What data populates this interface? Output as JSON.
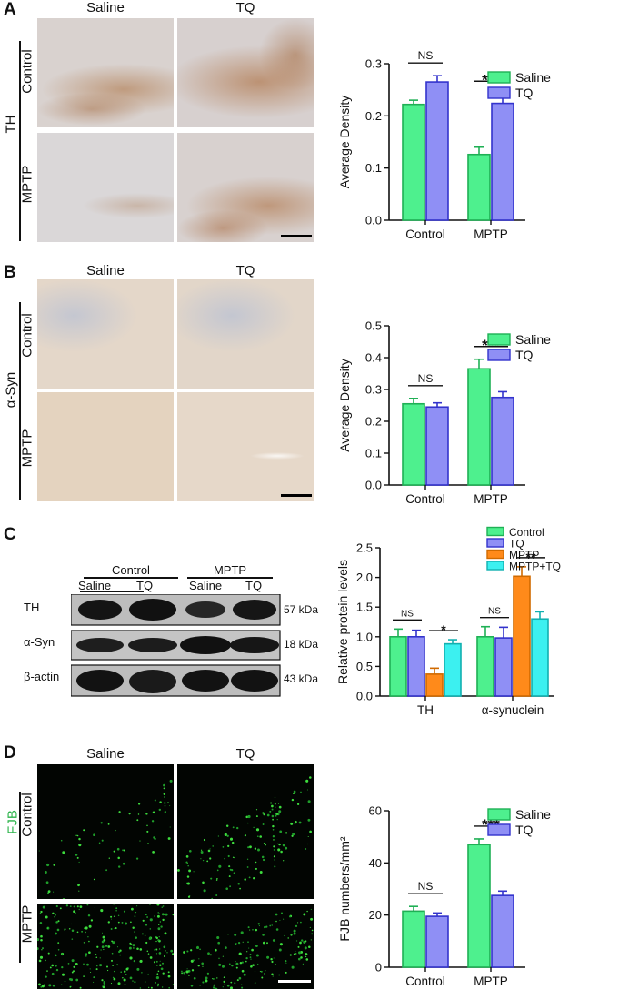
{
  "panels": {
    "A": {
      "label": "A",
      "col_titles": [
        "Saline",
        "TQ"
      ],
      "group_label": "TH",
      "row_titles": [
        "Control",
        "MPTP"
      ]
    },
    "B": {
      "label": "B",
      "col_titles": [
        "Saline",
        "TQ"
      ],
      "group_label": "α-Syn",
      "row_titles": [
        "Control",
        "MPTP"
      ]
    },
    "C": {
      "label": "C",
      "blot": {
        "group_titles": [
          "Control",
          "MPTP"
        ],
        "lane_titles": [
          "Saline",
          "TQ",
          "Saline",
          "TQ"
        ],
        "rows": [
          {
            "protein": "TH",
            "kda": "57 kDa"
          },
          {
            "protein": "α-Syn",
            "kda": "18 kDa"
          },
          {
            "protein": "β-actin",
            "kda": "43 kDa"
          }
        ]
      }
    },
    "D": {
      "label": "D",
      "col_titles": [
        "Saline",
        "TQ"
      ],
      "group_label": "FJB",
      "group_label_color": "#2bb34a",
      "row_titles": [
        "Control",
        "MPTP"
      ]
    }
  },
  "colors": {
    "saline": "#4ef08e",
    "tq": "#8f8ff5",
    "mptp": "#ff8a1a",
    "mptp_tq": "#3cf0f0",
    "axis": "#111111"
  },
  "chart_data": [
    {
      "id": "A",
      "type": "bar",
      "categories": [
        "Control",
        "MPTP"
      ],
      "series": [
        {
          "name": "Saline",
          "values": [
            0.222,
            0.126
          ],
          "errors": [
            0.008,
            0.014
          ]
        },
        {
          "name": "TQ",
          "values": [
            0.265,
            0.224
          ],
          "errors": [
            0.012,
            0.018
          ]
        }
      ],
      "ylabel": "Average Density",
      "ylim": [
        0,
        0.3
      ],
      "yticks": [
        "0.0",
        "0.1",
        "0.2",
        "0.3"
      ],
      "annotations": [
        {
          "group": 0,
          "text": "NS"
        },
        {
          "group": 1,
          "text": "***"
        }
      ],
      "legend": "top-right"
    },
    {
      "id": "B",
      "type": "bar",
      "categories": [
        "Control",
        "MPTP"
      ],
      "series": [
        {
          "name": "Saline",
          "values": [
            0.255,
            0.365
          ],
          "errors": [
            0.017,
            0.03
          ]
        },
        {
          "name": "TQ",
          "values": [
            0.245,
            0.275
          ],
          "errors": [
            0.013,
            0.018
          ]
        }
      ],
      "ylabel": "Average Density",
      "ylim": [
        0,
        0.5
      ],
      "yticks": [
        "0.0",
        "0.1",
        "0.2",
        "0.3",
        "0.4",
        "0.5"
      ],
      "annotations": [
        {
          "group": 0,
          "text": "NS"
        },
        {
          "group": 1,
          "text": "***"
        }
      ],
      "legend": "top-right"
    },
    {
      "id": "C",
      "type": "bar",
      "categories": [
        "TH",
        "α-synuclein"
      ],
      "series": [
        {
          "name": "Control",
          "values": [
            1.0,
            1.0
          ],
          "errors": [
            0.13,
            0.17
          ]
        },
        {
          "name": "TQ",
          "values": [
            1.0,
            0.98
          ],
          "errors": [
            0.11,
            0.18
          ]
        },
        {
          "name": "MPTP",
          "values": [
            0.37,
            2.02
          ],
          "errors": [
            0.1,
            0.16
          ]
        },
        {
          "name": "MPTP+TQ",
          "values": [
            0.88,
            1.3
          ],
          "errors": [
            0.07,
            0.12
          ]
        }
      ],
      "ylabel": "Relative protein levels",
      "ylim": [
        0,
        2.5
      ],
      "yticks": [
        "0.0",
        "0.5",
        "1.0",
        "1.5",
        "2.0",
        "2.5"
      ],
      "annotations": [
        {
          "group": 0,
          "pair": [
            0,
            1
          ],
          "text": "NS"
        },
        {
          "group": 0,
          "pair": [
            2,
            3
          ],
          "text": "*"
        },
        {
          "group": 1,
          "pair": [
            0,
            1
          ],
          "text": "NS"
        },
        {
          "group": 1,
          "pair": [
            2,
            3
          ],
          "text": "**"
        }
      ],
      "legend": "top-right"
    },
    {
      "id": "D",
      "type": "bar",
      "categories": [
        "Control",
        "MPTP"
      ],
      "series": [
        {
          "name": "Saline",
          "values": [
            21.5,
            47.0
          ],
          "errors": [
            1.8,
            2.2
          ]
        },
        {
          "name": "TQ",
          "values": [
            19.5,
            27.5
          ],
          "errors": [
            1.3,
            1.7
          ]
        }
      ],
      "ylabel": "FJB numbers/mm²",
      "ylim": [
        0,
        60
      ],
      "yticks": [
        "0",
        "20",
        "40",
        "60"
      ],
      "annotations": [
        {
          "group": 0,
          "text": "NS"
        },
        {
          "group": 1,
          "text": "***"
        }
      ],
      "legend": "top-right"
    }
  ]
}
